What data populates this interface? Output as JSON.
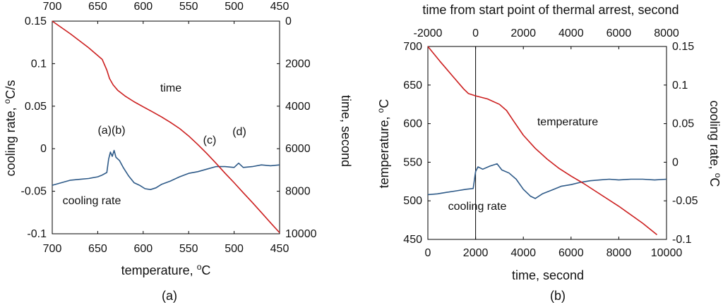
{
  "chart_data": [
    {
      "type": "line",
      "panel_label": "(a)",
      "xlabel": "temperature, ",
      "xlabel_unit": "C",
      "xlabel_sup": "o",
      "ylabel_left": "cooling rate, ",
      "ylabel_left_sup": "o",
      "ylabel_left_unit": "C/s",
      "ylabel_right": "time, second",
      "x_bottom_ticks": [
        "700",
        "650",
        "600",
        "550",
        "500",
        "450"
      ],
      "x_top_ticks": [
        "700",
        "650",
        "600",
        "550",
        "500",
        "450"
      ],
      "y_left_ticks": [
        "0.15",
        "0.1",
        "0.05",
        "0",
        "-0.05",
        "-0.1"
      ],
      "y_right_ticks": [
        "0",
        "2000",
        "4000",
        "6000",
        "8000",
        "10000"
      ],
      "xlim": [
        700,
        450
      ],
      "ylim_left": [
        -0.1,
        0.15
      ],
      "ylim_right": [
        10000,
        0
      ],
      "series": [
        {
          "name": "time",
          "color": "#cc1f1f",
          "axis": "right",
          "label": "time",
          "x": [
            700,
            680,
            660,
            645,
            640,
            637,
            633,
            628,
            620,
            610,
            600,
            590,
            580,
            570,
            560,
            550,
            540,
            530,
            520,
            510,
            500,
            490,
            480,
            470,
            460,
            450
          ],
          "y": [
            0,
            600,
            1250,
            1800,
            2300,
            2700,
            3000,
            3250,
            3520,
            3790,
            4030,
            4260,
            4500,
            4760,
            5050,
            5400,
            5800,
            6230,
            6680,
            7150,
            7600,
            8070,
            8530,
            9000,
            9480,
            9950
          ]
        },
        {
          "name": "cooling rate",
          "color": "#2e5a88",
          "axis": "left",
          "label": "cooling rate",
          "x": [
            700,
            690,
            680,
            670,
            660,
            650,
            645,
            640,
            638,
            636,
            634,
            632,
            630,
            626,
            622,
            616,
            610,
            604,
            598,
            592,
            586,
            580,
            570,
            560,
            550,
            540,
            530,
            520,
            510,
            500,
            495,
            490,
            480,
            470,
            460,
            450
          ],
          "y": [
            -0.043,
            -0.04,
            -0.037,
            -0.036,
            -0.035,
            -0.033,
            -0.031,
            -0.028,
            -0.012,
            -0.004,
            -0.009,
            -0.002,
            -0.01,
            -0.014,
            -0.022,
            -0.032,
            -0.04,
            -0.043,
            -0.047,
            -0.048,
            -0.046,
            -0.042,
            -0.038,
            -0.033,
            -0.029,
            -0.027,
            -0.024,
            -0.021,
            -0.021,
            -0.022,
            -0.017,
            -0.022,
            -0.021,
            -0.019,
            -0.02,
            -0.019
          ]
        }
      ],
      "annotations": [
        "(a)(b)",
        "(c)",
        "(d)"
      ]
    },
    {
      "type": "line",
      "panel_label": "(b)",
      "title_top": "time from start point of thermal arrest, second",
      "xlabel": "time, second",
      "ylabel_left": "temperature, ",
      "ylabel_left_sup": "o",
      "ylabel_left_unit": "C",
      "ylabel_right": "cooling rate, ",
      "ylabel_right_sup": "o",
      "ylabel_right_unit": "C",
      "x_bottom_ticks": [
        "0",
        "2000",
        "4000",
        "6000",
        "8000",
        "10000"
      ],
      "x_top_ticks": [
        "-2000",
        "0",
        "2000",
        "4000",
        "6000",
        "8000"
      ],
      "y_left_ticks": [
        "700",
        "650",
        "600",
        "550",
        "500",
        "450"
      ],
      "y_right_ticks": [
        "0.15",
        "0.1",
        "0.05",
        "0",
        "-0.05",
        "-0.1"
      ],
      "xlim": [
        0,
        10000
      ],
      "ylim_left": [
        450,
        700
      ],
      "ylim_right": [
        -0.1,
        0.15
      ],
      "vline_x": 2000,
      "series": [
        {
          "name": "temperature",
          "color": "#cc1f1f",
          "axis": "left",
          "label": "temperature",
          "x": [
            0,
            500,
            1000,
            1500,
            1700,
            2000,
            2500,
            3000,
            3300,
            3600,
            4000,
            4500,
            5000,
            5500,
            6000,
            6500,
            7000,
            8000,
            9000,
            9600
          ],
          "y": [
            700,
            681,
            663,
            645,
            639,
            636,
            632,
            625,
            617,
            603,
            585,
            568,
            554,
            542,
            532,
            523,
            513,
            493,
            471,
            456
          ]
        },
        {
          "name": "cooling rate",
          "color": "#2e5a88",
          "axis": "right",
          "label": "cooling rate",
          "x": [
            0,
            400,
            800,
            1200,
            1600,
            1900,
            2000,
            2100,
            2300,
            2600,
            2900,
            3100,
            3400,
            3700,
            4000,
            4300,
            4500,
            4800,
            5200,
            5600,
            6000,
            6400,
            6800,
            7200,
            7600,
            8000,
            8500,
            9000,
            9500,
            10000
          ],
          "y": [
            -0.042,
            -0.041,
            -0.039,
            -0.037,
            -0.035,
            -0.034,
            -0.012,
            -0.006,
            -0.009,
            -0.005,
            -0.002,
            -0.01,
            -0.014,
            -0.022,
            -0.035,
            -0.044,
            -0.047,
            -0.041,
            -0.036,
            -0.031,
            -0.029,
            -0.026,
            -0.024,
            -0.023,
            -0.022,
            -0.023,
            -0.022,
            -0.022,
            -0.023,
            -0.022
          ]
        }
      ]
    }
  ]
}
